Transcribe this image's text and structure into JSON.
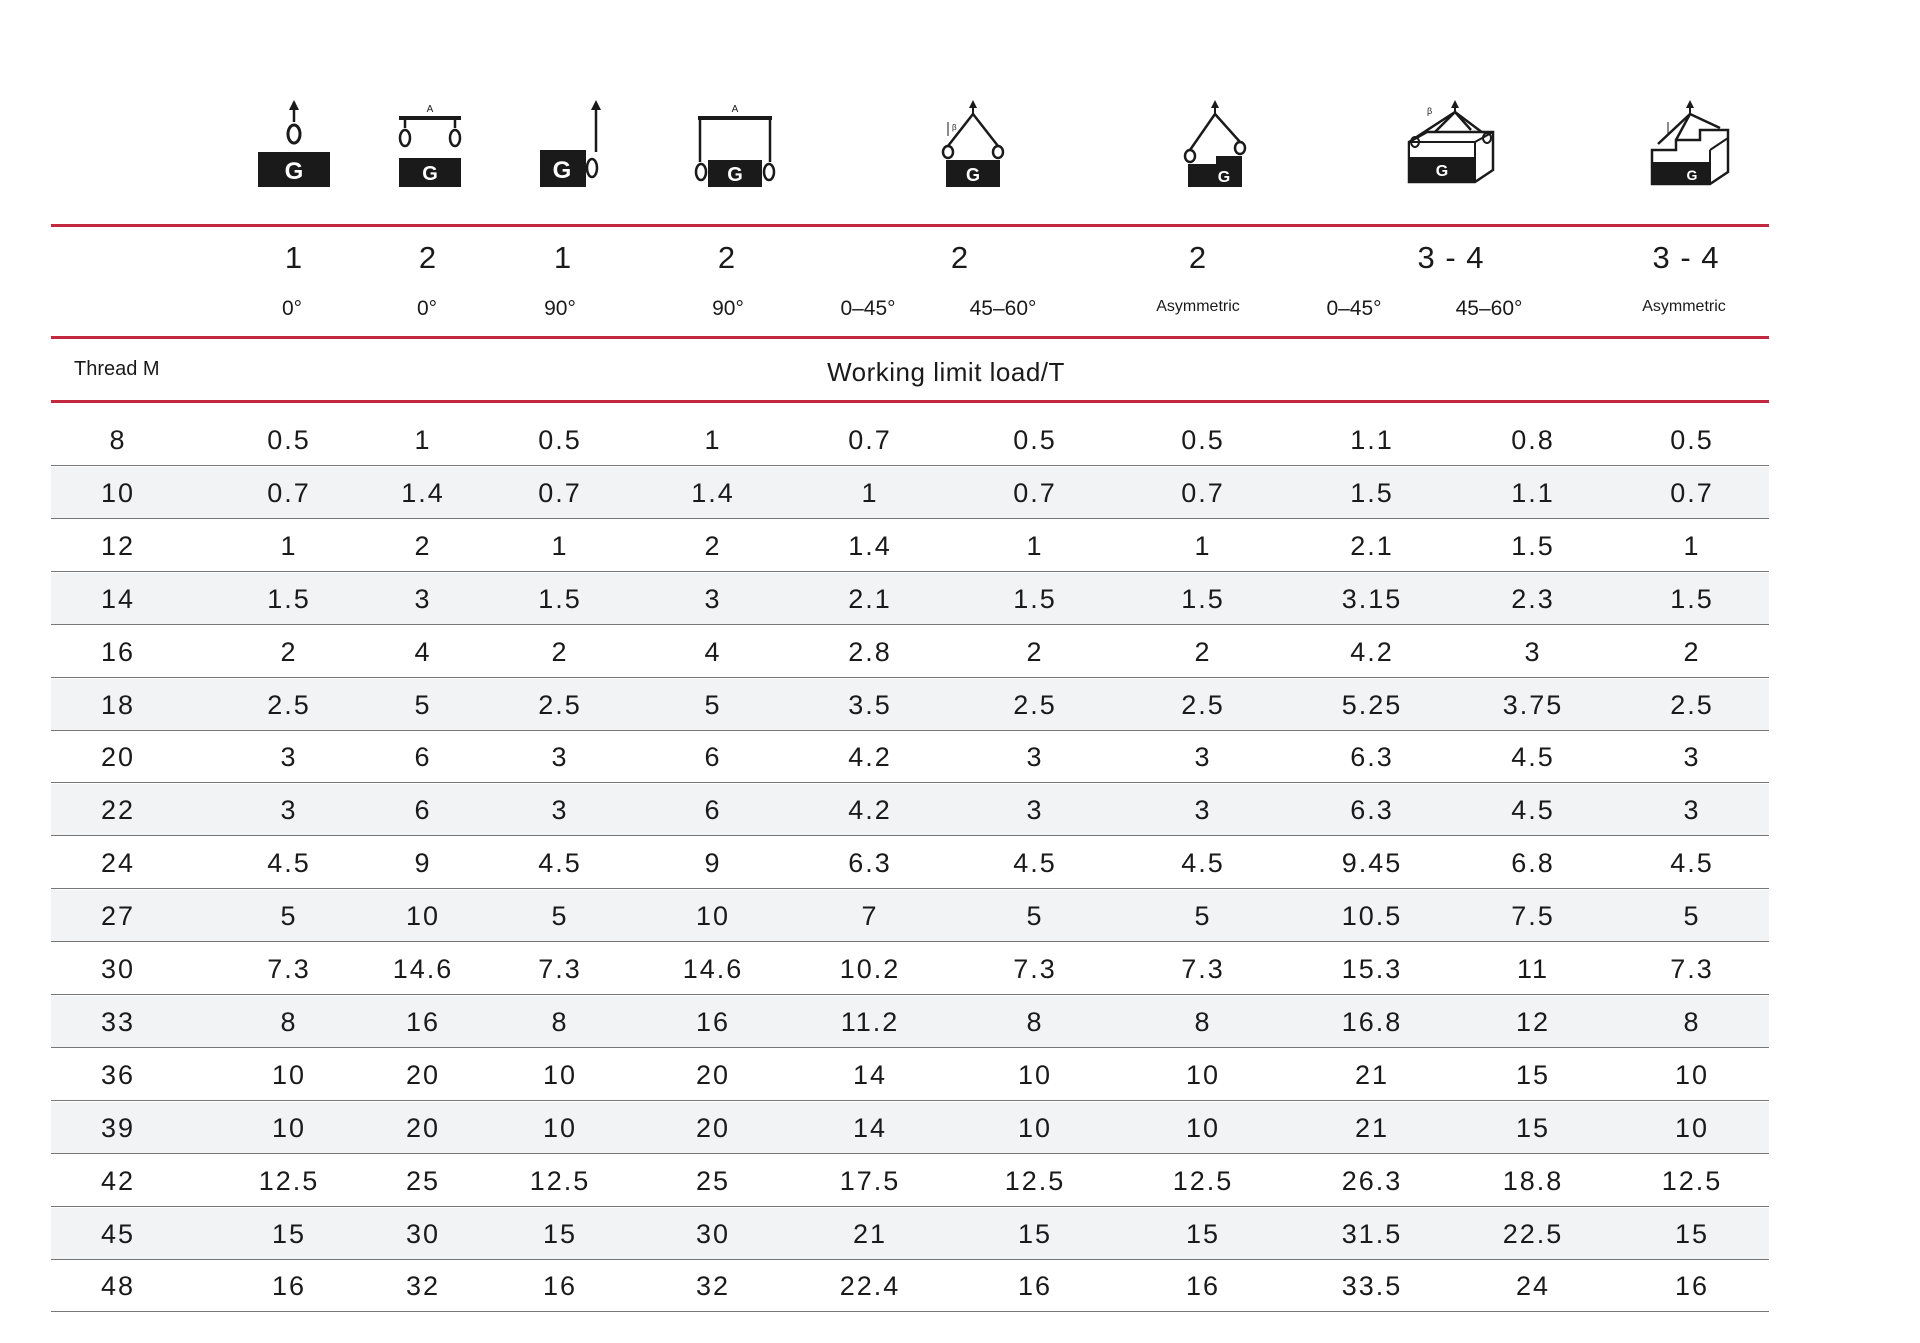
{
  "header": {
    "thread_label": "Thread M",
    "load_label": "Working limit load/T"
  },
  "configs": [
    {
      "count": "1",
      "angle": "0°"
    },
    {
      "count": "2",
      "angle": "0°"
    },
    {
      "count": "1",
      "angle": "90°"
    },
    {
      "count": "2",
      "angle": "90°"
    },
    {
      "count": "2",
      "angles": [
        "0–45°",
        "45–60°"
      ]
    },
    {
      "count": "2",
      "angle": "Asymmetric"
    },
    {
      "count": "3 - 4",
      "angles": [
        "0–45°",
        "45–60°"
      ]
    },
    {
      "count": "3 - 4",
      "angle": "Asymmetric"
    }
  ],
  "icons": [
    "single-vertical-lift-icon",
    "double-vertical-beam-lift-icon",
    "single-side-pull-icon",
    "double-side-pull-beam-icon",
    "two-leg-sling-icon",
    "two-leg-asymmetric-sling-icon",
    "multi-leg-sling-icon",
    "multi-leg-asymmetric-sling-icon"
  ],
  "colors": {
    "accent_line": "#c4283e",
    "row_alt": "#f1f3f4",
    "icon_fill": "#1a1a1a"
  },
  "rows": [
    {
      "thread": "8",
      "values": [
        "0.5",
        "1",
        "0.5",
        "1",
        "0.7",
        "0.5",
        "0.5",
        "1.1",
        "0.8",
        "0.5"
      ]
    },
    {
      "thread": "10",
      "values": [
        "0.7",
        "1.4",
        "0.7",
        "1.4",
        "1",
        "0.7",
        "0.7",
        "1.5",
        "1.1",
        "0.7"
      ]
    },
    {
      "thread": "12",
      "values": [
        "1",
        "2",
        "1",
        "2",
        "1.4",
        "1",
        "1",
        "2.1",
        "1.5",
        "1"
      ]
    },
    {
      "thread": "14",
      "values": [
        "1.5",
        "3",
        "1.5",
        "3",
        "2.1",
        "1.5",
        "1.5",
        "3.15",
        "2.3",
        "1.5"
      ]
    },
    {
      "thread": "16",
      "values": [
        "2",
        "4",
        "2",
        "4",
        "2.8",
        "2",
        "2",
        "4.2",
        "3",
        "2"
      ]
    },
    {
      "thread": "18",
      "values": [
        "2.5",
        "5",
        "2.5",
        "5",
        "3.5",
        "2.5",
        "2.5",
        "5.25",
        "3.75",
        "2.5"
      ]
    },
    {
      "thread": "20",
      "values": [
        "3",
        "6",
        "3",
        "6",
        "4.2",
        "3",
        "3",
        "6.3",
        "4.5",
        "3"
      ]
    },
    {
      "thread": "22",
      "values": [
        "3",
        "6",
        "3",
        "6",
        "4.2",
        "3",
        "3",
        "6.3",
        "4.5",
        "3"
      ]
    },
    {
      "thread": "24",
      "values": [
        "4.5",
        "9",
        "4.5",
        "9",
        "6.3",
        "4.5",
        "4.5",
        "9.45",
        "6.8",
        "4.5"
      ]
    },
    {
      "thread": "27",
      "values": [
        "5",
        "10",
        "5",
        "10",
        "7",
        "5",
        "5",
        "10.5",
        "7.5",
        "5"
      ]
    },
    {
      "thread": "30",
      "values": [
        "7.3",
        "14.6",
        "7.3",
        "14.6",
        "10.2",
        "7.3",
        "7.3",
        "15.3",
        "11",
        "7.3"
      ]
    },
    {
      "thread": "33",
      "values": [
        "8",
        "16",
        "8",
        "16",
        "11.2",
        "8",
        "8",
        "16.8",
        "12",
        "8"
      ]
    },
    {
      "thread": "36",
      "values": [
        "10",
        "20",
        "10",
        "20",
        "14",
        "10",
        "10",
        "21",
        "15",
        "10"
      ]
    },
    {
      "thread": "39",
      "values": [
        "10",
        "20",
        "10",
        "20",
        "14",
        "10",
        "10",
        "21",
        "15",
        "10"
      ]
    },
    {
      "thread": "42",
      "values": [
        "12.5",
        "25",
        "12.5",
        "25",
        "17.5",
        "12.5",
        "12.5",
        "26.3",
        "18.8",
        "12.5"
      ]
    },
    {
      "thread": "45",
      "values": [
        "15",
        "30",
        "15",
        "30",
        "21",
        "15",
        "15",
        "31.5",
        "22.5",
        "15"
      ]
    },
    {
      "thread": "48",
      "values": [
        "16",
        "32",
        "16",
        "32",
        "22.4",
        "16",
        "16",
        "33.5",
        "24",
        "16"
      ]
    }
  ]
}
